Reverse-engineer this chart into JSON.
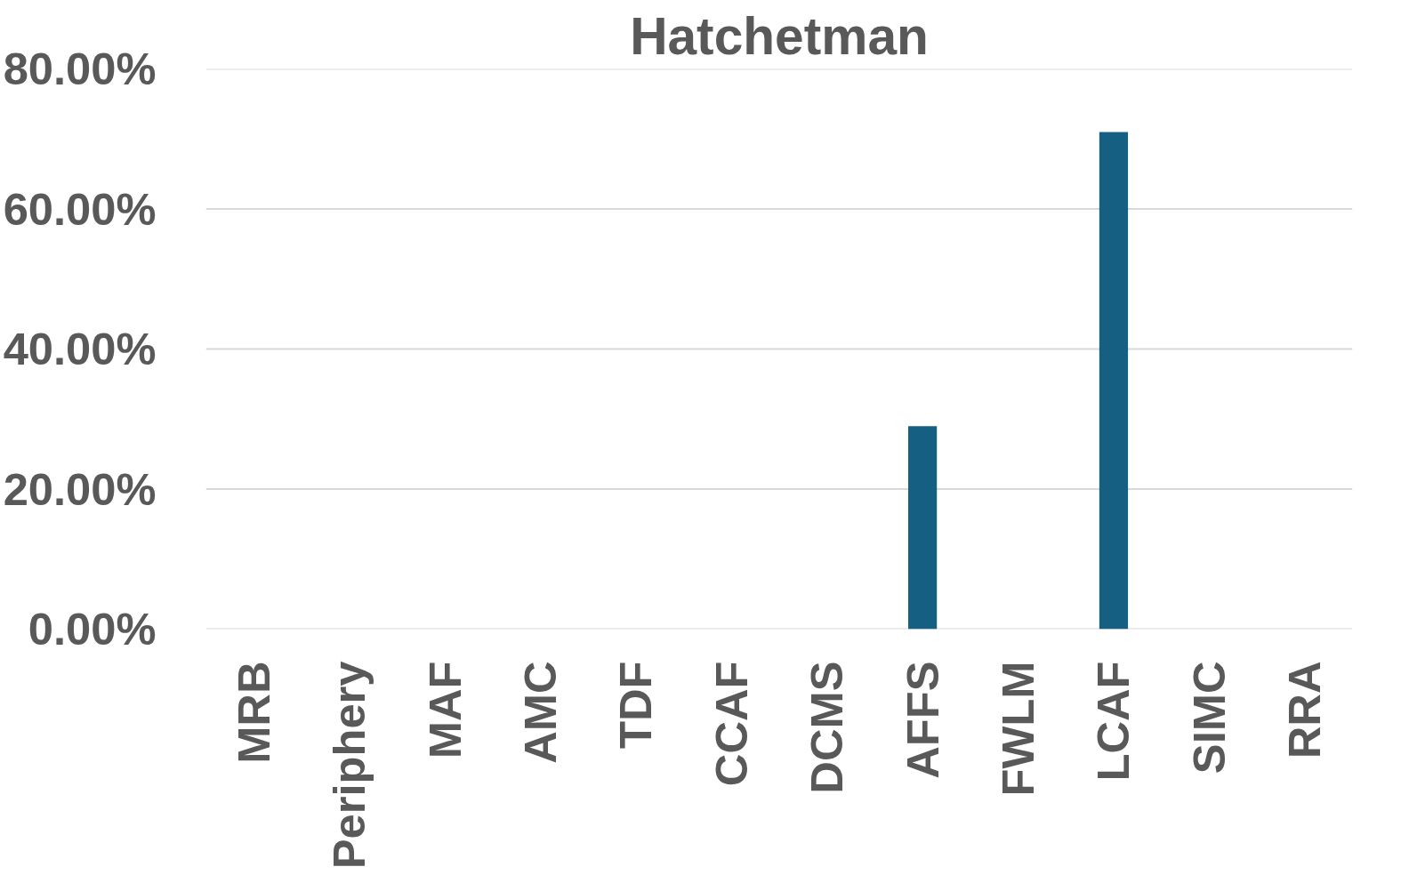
{
  "chart_data": {
    "type": "bar",
    "title": "Hatchetman",
    "categories": [
      "MRB",
      "Periphery",
      "MAF",
      "AMC",
      "TDF",
      "CCAF",
      "DCMS",
      "AFFS",
      "FWLM",
      "LCAF",
      "SIMC",
      "RRA"
    ],
    "values": [
      0,
      0,
      0,
      0,
      0,
      0,
      0,
      29,
      0,
      71,
      0,
      0
    ],
    "color": "#156082",
    "ylim": [
      0,
      80
    ],
    "yticks": [
      {
        "value": 0,
        "label": "0.00%"
      },
      {
        "value": 20,
        "label": "20.00%"
      },
      {
        "value": 40,
        "label": "40.00%"
      },
      {
        "value": 60,
        "label": "60.00%"
      },
      {
        "value": 80,
        "label": "80.00%"
      }
    ],
    "grid": "y"
  }
}
